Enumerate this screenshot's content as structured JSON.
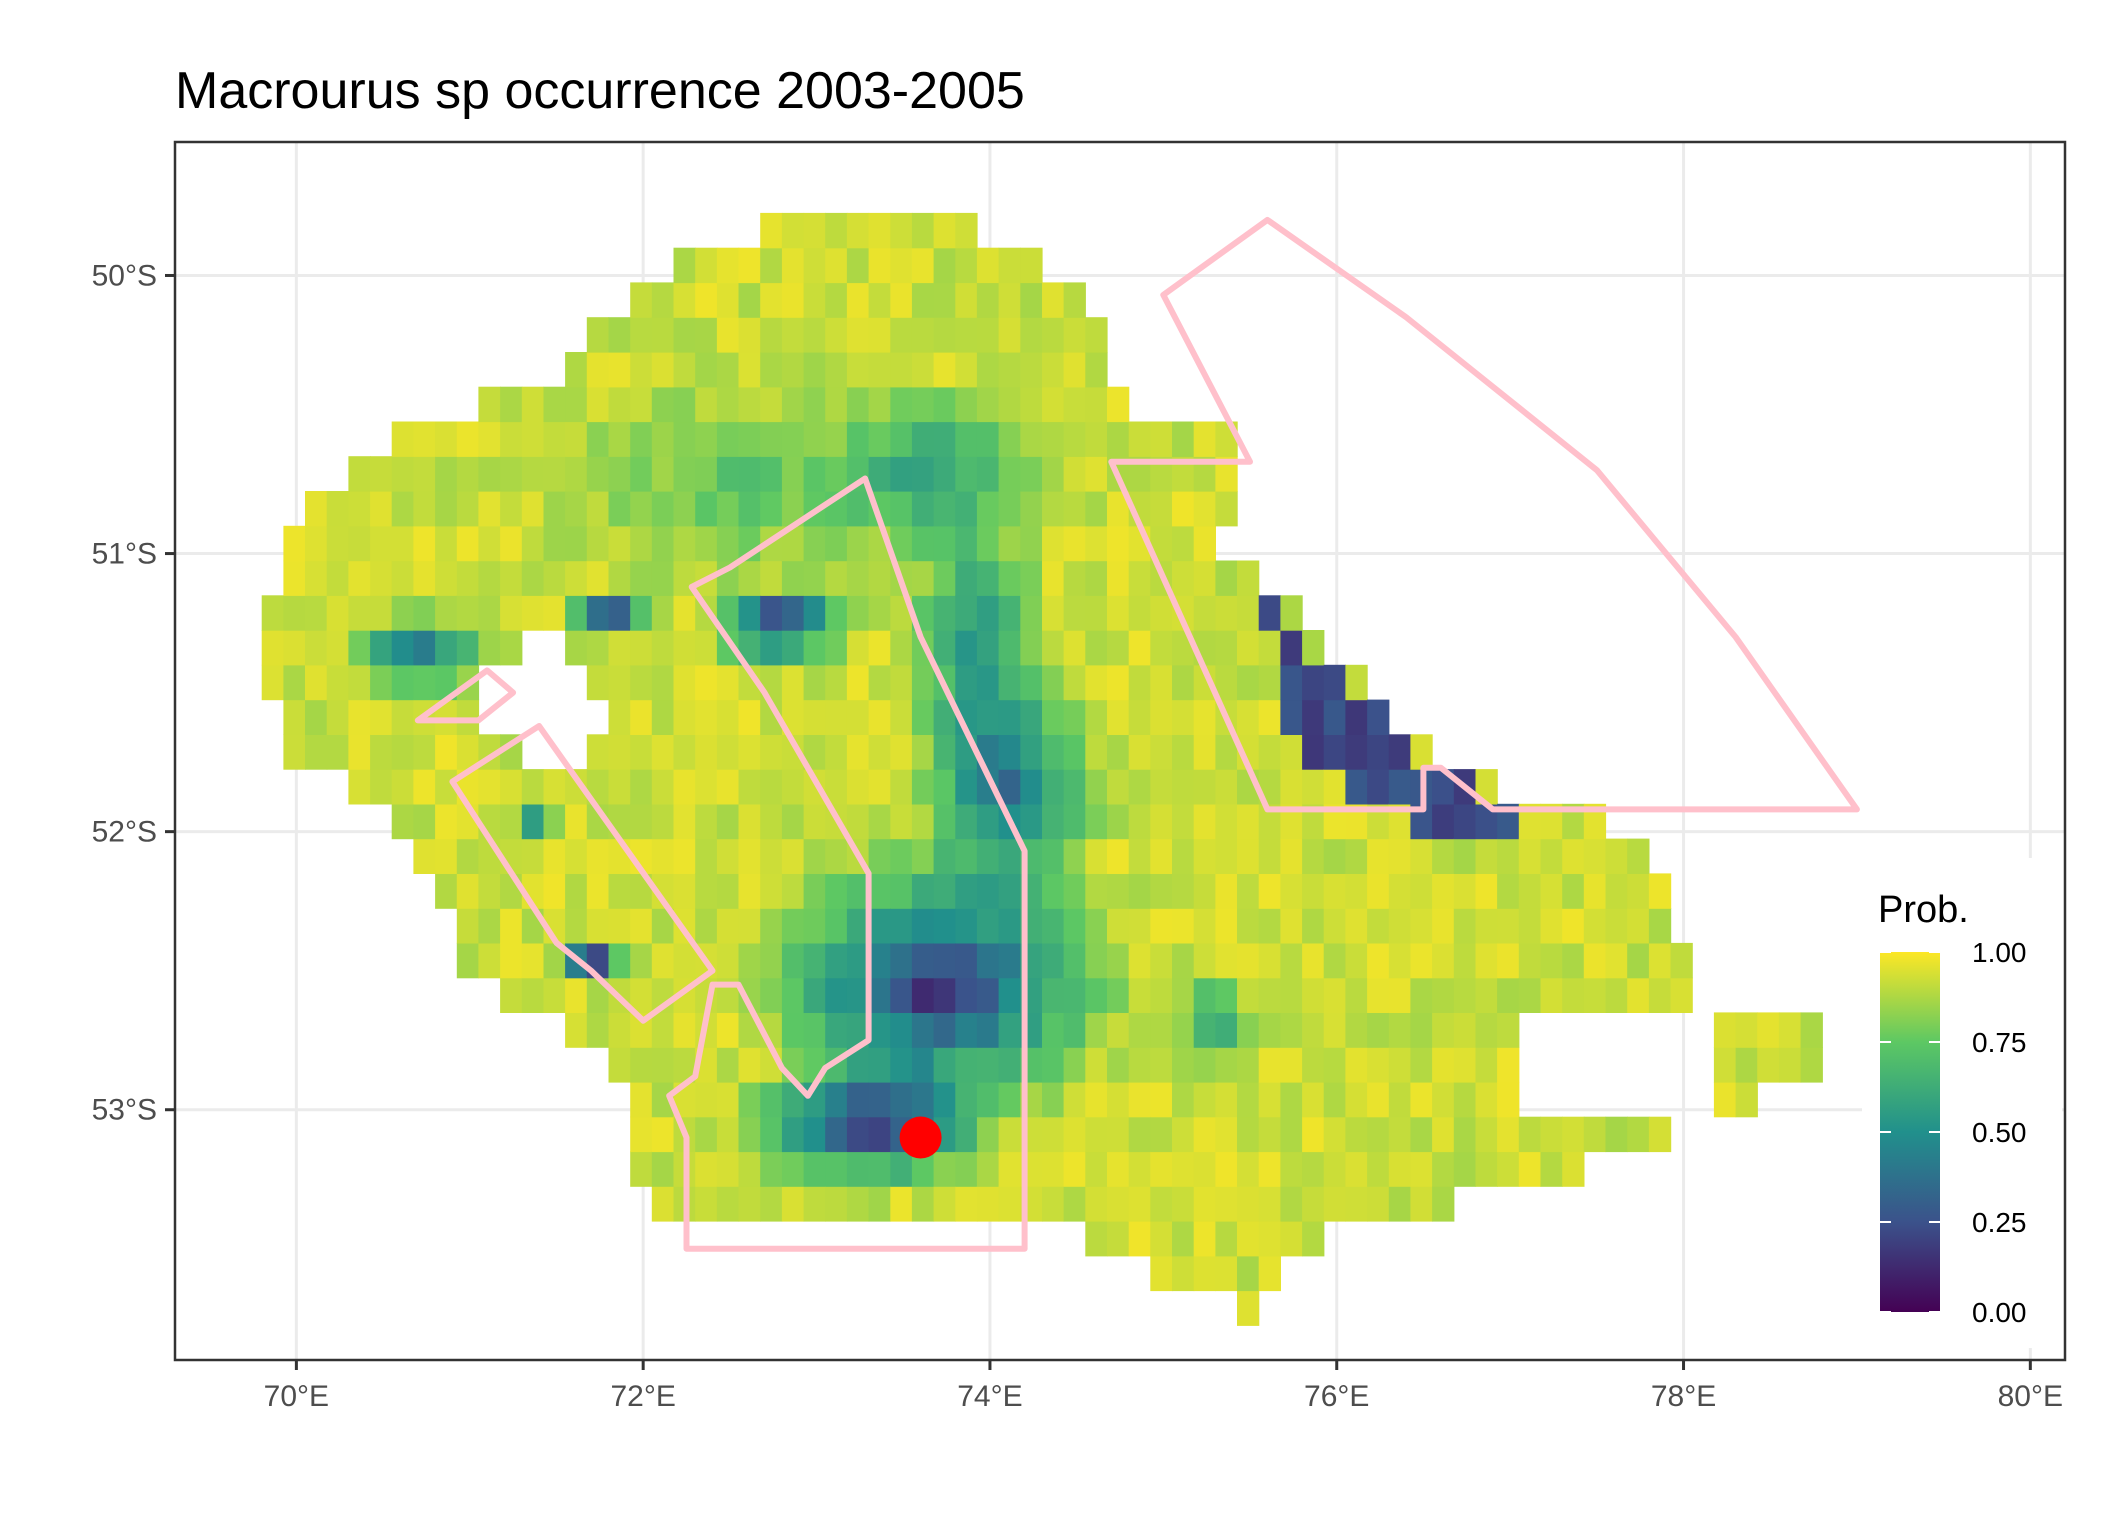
{
  "title": "Macrourus sp  occurrence 2003-2005",
  "x_axis": {
    "ticks": [
      {
        "value": 70,
        "label": "70°E"
      },
      {
        "value": 72,
        "label": "72°E"
      },
      {
        "value": 74,
        "label": "74°E"
      },
      {
        "value": 76,
        "label": "76°E"
      },
      {
        "value": 78,
        "label": "78°E"
      },
      {
        "value": 80,
        "label": "80°E"
      }
    ],
    "range": [
      69.3,
      80.2
    ]
  },
  "y_axis": {
    "ticks": [
      {
        "value": -50,
        "label": "50°S"
      },
      {
        "value": -51,
        "label": "51°S"
      },
      {
        "value": -52,
        "label": "52°S"
      },
      {
        "value": -53,
        "label": "53°S"
      }
    ],
    "range": [
      -53.9,
      -49.52
    ]
  },
  "legend": {
    "title": "Prob.",
    "ticks": [
      {
        "value": 1.0,
        "label": "1.00"
      },
      {
        "value": 0.75,
        "label": "0.75"
      },
      {
        "value": 0.5,
        "label": "0.50"
      },
      {
        "value": 0.25,
        "label": "0.25"
      },
      {
        "value": 0.0,
        "label": "0.00"
      }
    ],
    "colors": [
      "#440154",
      "#3b528b",
      "#21908c",
      "#5dc863",
      "#fde725"
    ]
  },
  "colors": {
    "boundary": "#ffc0cb",
    "point": "#ff0000",
    "panel_border": "#333333",
    "gridline": "#ebebeb"
  },
  "chart_data": {
    "type": "heatmap",
    "title": "Macrourus sp  occurrence 2003-2005",
    "xlabel": "",
    "ylabel": "",
    "value_label": "Prob.",
    "value_range": [
      0,
      1
    ],
    "cell_size_deg": 0.125,
    "zones": [
      {
        "shape": "polygon",
        "points": [
          [
            69.8,
            -51.35
          ],
          [
            70.0,
            -50.85
          ],
          [
            70.6,
            -50.55
          ],
          [
            71.5,
            -50.35
          ],
          [
            72.1,
            -50.0
          ],
          [
            72.6,
            -49.85
          ],
          [
            73.5,
            -49.72
          ],
          [
            74.2,
            -49.9
          ],
          [
            74.6,
            -50.15
          ],
          [
            74.8,
            -50.45
          ],
          [
            75.5,
            -50.6
          ],
          [
            75.3,
            -50.95
          ],
          [
            75.85,
            -51.25
          ],
          [
            76.3,
            -51.55
          ],
          [
            76.7,
            -51.8
          ],
          [
            77.3,
            -51.92
          ],
          [
            77.8,
            -52.0
          ],
          [
            78.1,
            -52.6
          ],
          [
            79.0,
            -52.75
          ],
          [
            78.3,
            -53.0
          ],
          [
            77.0,
            -53.3
          ],
          [
            76.0,
            -53.4
          ],
          [
            75.5,
            -53.75
          ],
          [
            74.8,
            -53.55
          ],
          [
            74.3,
            -53.4
          ],
          [
            73.5,
            -53.45
          ],
          [
            72.4,
            -53.4
          ],
          [
            71.9,
            -53.3
          ],
          [
            72.0,
            -52.9
          ],
          [
            71.0,
            -52.5
          ],
          [
            70.5,
            -51.9
          ],
          [
            69.9,
            -51.7
          ]
        ],
        "value": 0.92
      },
      {
        "shape": "ellipse",
        "cx": 72.6,
        "cy": -50.75,
        "rx": 1.5,
        "ry": 0.55,
        "value": 0.72
      },
      {
        "shape": "ellipse",
        "cx": 73.7,
        "cy": -50.7,
        "rx": 0.9,
        "ry": 0.4,
        "value": 0.55
      },
      {
        "shape": "ellipse",
        "cx": 73.9,
        "cy": -51.3,
        "rx": 0.55,
        "ry": 0.6,
        "value": 0.45
      },
      {
        "shape": "ellipse",
        "cx": 74.1,
        "cy": -51.85,
        "rx": 0.7,
        "ry": 0.55,
        "value": 0.28
      },
      {
        "shape": "ellipse",
        "cx": 73.7,
        "cy": -52.55,
        "rx": 1.3,
        "ry": 0.6,
        "value": 0.06
      },
      {
        "shape": "ellipse",
        "cx": 73.3,
        "cy": -53.05,
        "rx": 0.95,
        "ry": 0.3,
        "value": 0.1
      },
      {
        "shape": "ellipse",
        "cx": 72.8,
        "cy": -51.25,
        "rx": 0.55,
        "ry": 0.18,
        "value": 0.03
      },
      {
        "shape": "ellipse",
        "cx": 71.8,
        "cy": -51.2,
        "rx": 0.3,
        "ry": 0.12,
        "value": 0.05
      },
      {
        "shape": "ellipse",
        "cx": 70.7,
        "cy": -51.35,
        "rx": 0.55,
        "ry": 0.2,
        "value": 0.3
      },
      {
        "shape": "ellipse",
        "cx": 71.7,
        "cy": -52.45,
        "rx": 0.25,
        "ry": 0.12,
        "value": 0.05
      },
      {
        "shape": "ellipse",
        "cx": 71.4,
        "cy": -51.98,
        "rx": 0.12,
        "ry": 0.12,
        "value": 0.15
      },
      {
        "shape": "polygon",
        "points": [
          [
            75.6,
            -51.2
          ],
          [
            76.1,
            -51.5
          ],
          [
            76.6,
            -51.8
          ],
          [
            77.2,
            -51.9
          ],
          [
            77.0,
            -52.0
          ],
          [
            76.2,
            -51.95
          ],
          [
            75.7,
            -51.6
          ]
        ],
        "value": 0.05
      },
      {
        "shape": "ellipse",
        "cx": 75.3,
        "cy": -52.7,
        "rx": 0.35,
        "ry": 0.25,
        "value": 0.5
      }
    ],
    "holes": [
      {
        "shape": "polygon",
        "points": [
          [
            71.1,
            -51.45
          ],
          [
            71.3,
            -51.3
          ],
          [
            71.7,
            -51.35
          ],
          [
            71.8,
            -51.7
          ],
          [
            71.4,
            -51.75
          ],
          [
            71.0,
            -51.6
          ]
        ]
      },
      {
        "shape": "polygon",
        "points": [
          [
            77.0,
            -52.65
          ],
          [
            77.9,
            -52.6
          ],
          [
            78.2,
            -52.75
          ],
          [
            78.2,
            -53.0
          ],
          [
            77.0,
            -53.0
          ]
        ]
      }
    ],
    "boundaries": [
      {
        "name": "",
        "points": [
          [
            72.28,
            -51.12
          ],
          [
            72.5,
            -51.05
          ],
          [
            73.28,
            -50.73
          ],
          [
            73.6,
            -51.3
          ],
          [
            74.2,
            -52.07
          ],
          [
            74.2,
            -53.5
          ],
          [
            72.25,
            -53.5
          ],
          [
            72.25,
            -53.1
          ],
          [
            72.15,
            -52.95
          ],
          [
            72.3,
            -52.88
          ],
          [
            72.4,
            -52.55
          ],
          [
            72.55,
            -52.55
          ],
          [
            72.8,
            -52.85
          ],
          [
            72.95,
            -52.95
          ],
          [
            73.05,
            -52.85
          ],
          [
            73.3,
            -52.75
          ],
          [
            73.3,
            -52.15
          ],
          [
            72.7,
            -51.5
          ],
          [
            72.28,
            -51.12
          ]
        ]
      },
      {
        "name": "",
        "points": [
          [
            70.7,
            -51.6
          ],
          [
            71.05,
            -51.6
          ],
          [
            71.25,
            -51.5
          ],
          [
            71.1,
            -51.42
          ],
          [
            70.7,
            -51.6
          ]
        ]
      },
      {
        "name": "",
        "points": [
          [
            70.9,
            -51.82
          ],
          [
            71.4,
            -51.62
          ],
          [
            72.4,
            -52.5
          ],
          [
            72.0,
            -52.68
          ],
          [
            71.7,
            -52.5
          ],
          [
            71.5,
            -52.4
          ],
          [
            70.9,
            -51.82
          ]
        ]
      },
      {
        "name": "",
        "points": [
          [
            74.7,
            -50.67
          ],
          [
            75.5,
            -50.67
          ],
          [
            75.0,
            -50.07
          ],
          [
            75.6,
            -49.8
          ],
          [
            76.4,
            -50.15
          ],
          [
            77.5,
            -50.7
          ],
          [
            78.3,
            -51.3
          ],
          [
            79.0,
            -51.92
          ],
          [
            76.9,
            -51.92
          ],
          [
            76.6,
            -51.77
          ],
          [
            76.5,
            -51.77
          ],
          [
            76.5,
            -51.92
          ],
          [
            75.6,
            -51.92
          ],
          [
            74.7,
            -50.67
          ]
        ]
      }
    ],
    "points": [
      {
        "lon": 73.6,
        "lat": -53.1
      }
    ]
  }
}
